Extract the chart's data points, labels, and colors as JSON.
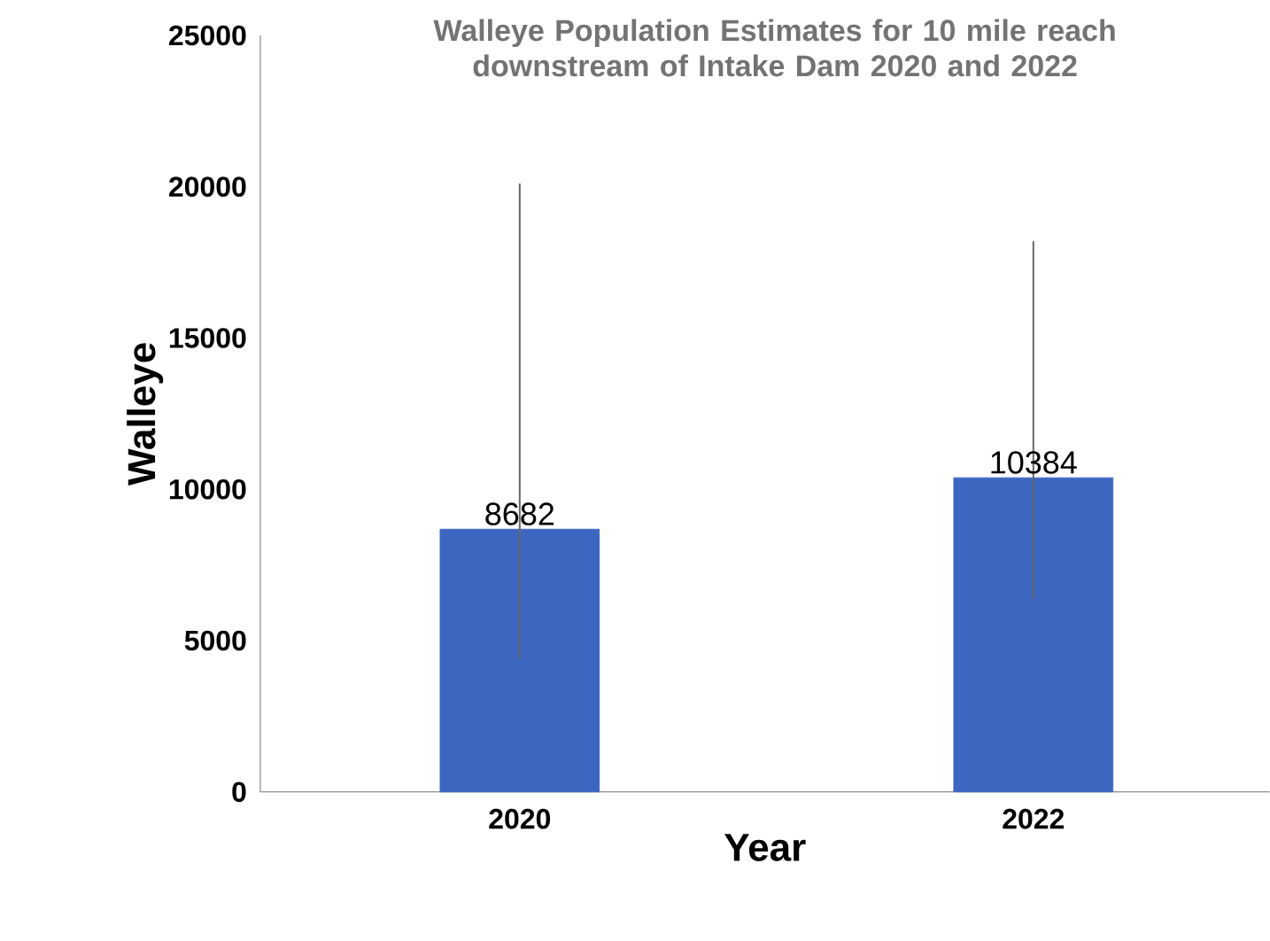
{
  "chart_data": {
    "type": "bar",
    "title": "Walleye Population Estimates for 10 mile reach downstream of Intake Dam 2020 and 2022",
    "xlabel": "Year",
    "ylabel": "Walleye",
    "categories": [
      "2020",
      "2022"
    ],
    "values": [
      8682,
      10384
    ],
    "errors": [
      [
        4400,
        20100
      ],
      [
        6400,
        18200
      ]
    ],
    "color": "#3d66c0",
    "data_labels": true,
    "ylim": [
      0,
      25000
    ],
    "yticks": [
      0,
      5000,
      10000,
      15000,
      20000,
      25000
    ],
    "marker": "none"
  }
}
